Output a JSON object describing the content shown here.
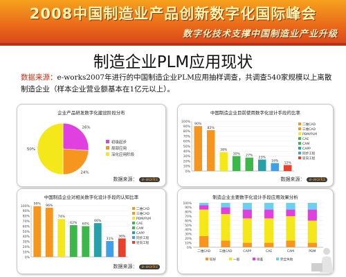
{
  "banner": {
    "title": "2008中国制造业产品创新数字化国际峰会",
    "subtitle": "数字化技术支撑中国制造业产业升级"
  },
  "page_title": "制造企业PLM应用现状",
  "note": {
    "source_label": "数据来源：",
    "text": "e-works2007年进行的中国制造企业PLM应用抽样调查，共调查540家规模以上离散制造企业（样本企业营业额基本在1亿元以上）。"
  },
  "panels": {
    "source_text": "数据来源：",
    "logo_text": "e-works"
  },
  "colors": {
    "magenta": "#e040e0",
    "orange": "#f7961e",
    "yellow": "#f5e81a",
    "green": "#3cb84a",
    "teal": "#27a0a8",
    "blue": "#3fa0e8",
    "red": "#e8402a"
  },
  "chart_data": [
    {
      "type": "pie",
      "title": "企业产品研发数字化建设阶段分布",
      "categories": [
        "初级起步",
        "局部应用",
        "深化应用阶段"
      ],
      "values": [
        26,
        24,
        50
      ],
      "labels": [
        "26%",
        "24%",
        "50%"
      ],
      "colors": [
        "#e040e0",
        "#f7961e",
        "#f5e81a"
      ],
      "legend": "right"
    },
    {
      "type": "bar",
      "title": "中国制造企业目前使用数字化设计手段的比率",
      "categories": [
        "二维CAD",
        "三维CAD",
        "PDM/PLM",
        "CAE",
        "CAM",
        "CAPP",
        "同步工程",
        "逆向工程"
      ],
      "values": [
        90,
        82,
        38,
        30,
        27,
        23,
        16,
        12
      ],
      "labels": [
        "90%",
        "82%",
        "38%",
        "30%",
        "27%",
        "23%",
        "16%",
        "12%"
      ],
      "ylim": [
        0,
        100
      ],
      "yticks": [
        "0%",
        "10%",
        "20%",
        "30%",
        "40%",
        "50%",
        "60%",
        "70%",
        "80%",
        "90%",
        "100%"
      ],
      "legend": "right"
    },
    {
      "type": "bar",
      "title": "中国制造企业对相关数字化设计手段的认知比率",
      "categories": [
        "二维CAD",
        "三维CAD",
        "PDM/PLM",
        "CAE",
        "CAM",
        "CAPP",
        "同步工程",
        "逆向工程"
      ],
      "values": [
        99,
        96,
        74,
        62,
        60,
        66,
        31,
        36
      ],
      "labels": [
        "99%",
        "96%",
        "74%",
        "62%",
        "60%",
        "66%",
        "31%",
        "36%"
      ],
      "ylim": [
        0,
        100
      ],
      "yticks": [
        "0%",
        "10%",
        "20%",
        "30%",
        "40%",
        "50%",
        "60%",
        "70%",
        "80%",
        "90%",
        "100%"
      ],
      "legend": "right"
    },
    {
      "type": "bar",
      "stacked": true,
      "title": "制造企业主要数字化设计手段应用效果分析",
      "categories": [
        "二维CAD",
        "三维CAD",
        "CAPP",
        "CAE",
        "CAM",
        "PDM"
      ],
      "series": [
        {
          "name": "较好",
          "values": [
            25,
            15,
            10,
            10,
            15,
            10
          ]
        },
        {
          "name": "一般",
          "values": [
            60,
            60,
            55,
            55,
            55,
            50
          ]
        },
        {
          "name": "很差",
          "values": [
            10,
            15,
            20,
            20,
            15,
            25
          ]
        },
        {
          "name": "完全失败",
          "values": [
            5,
            10,
            15,
            15,
            15,
            15
          ]
        }
      ],
      "ylim": [
        0,
        100
      ],
      "yticks": [
        "0%",
        "10%",
        "20%",
        "30%",
        "40%",
        "50%",
        "60%",
        "70%",
        "80%",
        "90%",
        "100%"
      ],
      "legend": "bottom"
    }
  ]
}
